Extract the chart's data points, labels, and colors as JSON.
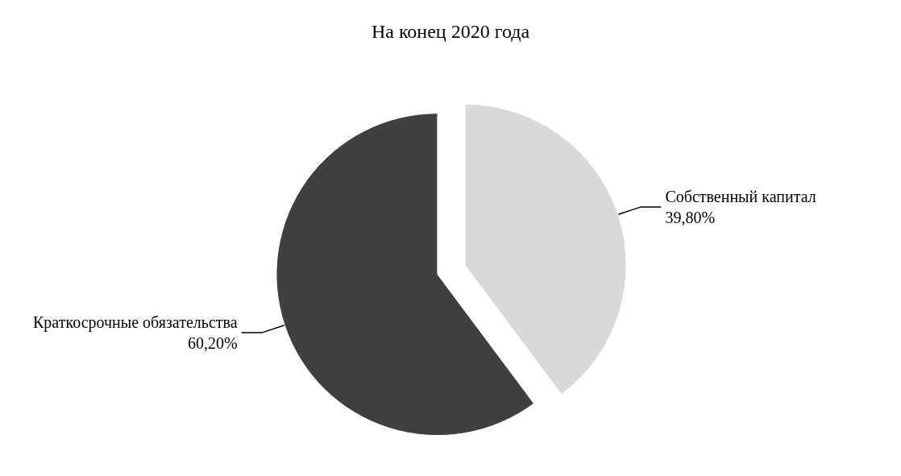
{
  "chart_data": {
    "type": "pie",
    "title": "На конец 2020 года",
    "categories": [
      "Собственный капитал",
      "Краткосрочные обязательства"
    ],
    "values": [
      39.8,
      60.2
    ],
    "colors": [
      "#d9d9d9",
      "#404040"
    ],
    "value_labels": [
      "39,80%",
      "60,20%"
    ],
    "legend": false
  }
}
